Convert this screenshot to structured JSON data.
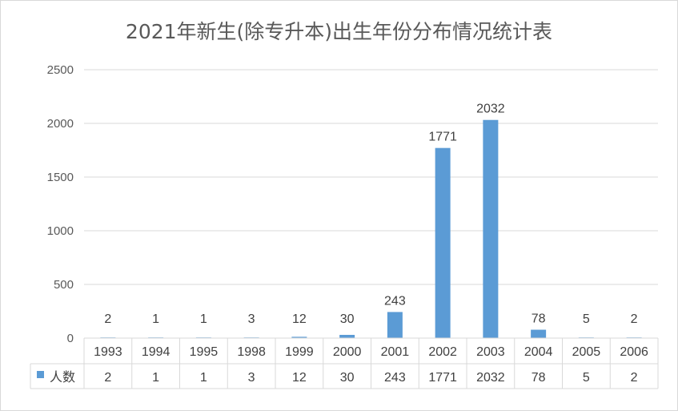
{
  "chart_data": {
    "type": "bar",
    "title": "2021年新生(除专升本)出生年份分布情况统计表",
    "categories": [
      "1993",
      "1994",
      "1995",
      "1998",
      "1999",
      "2000",
      "2001",
      "2002",
      "2003",
      "2004",
      "2005",
      "2006"
    ],
    "series": [
      {
        "name": "人数",
        "values": [
          2,
          1,
          1,
          3,
          12,
          30,
          243,
          1771,
          2032,
          78,
          5,
          2
        ]
      }
    ],
    "ylim": [
      0,
      2500
    ],
    "yticks": [
      "0",
      "500",
      "1000",
      "1500",
      "2000",
      "2500"
    ],
    "grid": true,
    "data_table": true,
    "bar_color": "#5b9bd5",
    "grid_color": "#d9d9d9"
  }
}
